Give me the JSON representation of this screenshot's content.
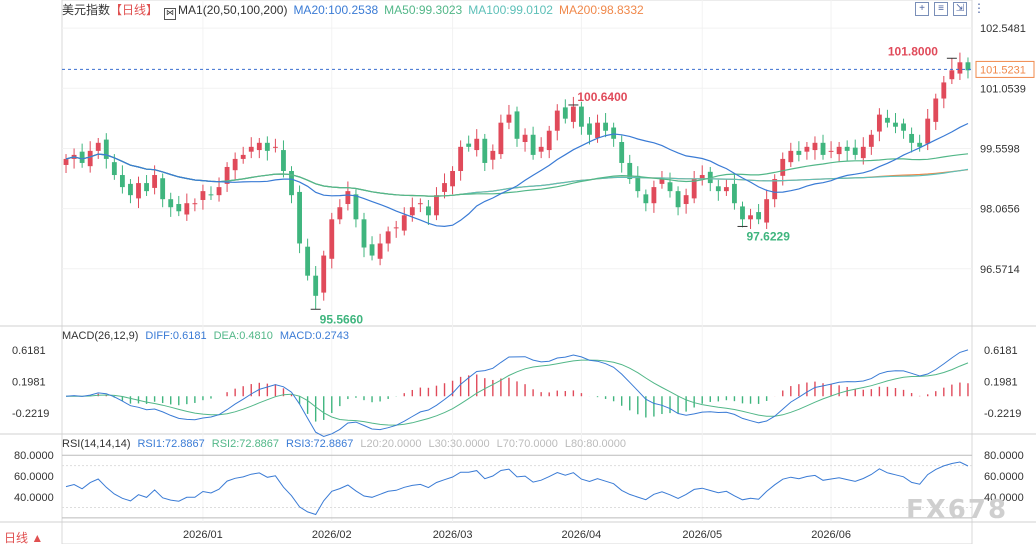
{
  "header": {
    "symbol": "美元指数",
    "period": "【日线】",
    "ma_icon": "indicator-icon",
    "ma_name": "MA1(20,50,100,200)",
    "ma20": "MA20:100.2538",
    "ma50": "MA50:99.3023",
    "ma100": "MA100:99.0102",
    "ma200": "MA200:98.8332"
  },
  "toolbar": [
    "zoom-in-icon",
    "settings-icon",
    "export-icon"
  ],
  "colors": {
    "up": "#e04a5a",
    "down": "#3fb57e",
    "ma20": "#3a7bd5",
    "ma50": "#52b788",
    "ma100": "#5dc0b8",
    "ma200": "#f0884a",
    "diff": "#3a7bd5",
    "dea": "#52b788",
    "rsi1": "#3a7bd5",
    "rsi2": "#52b788",
    "rsi3": "#c67bd5",
    "current_line": "#3a6fd0"
  },
  "price_axis": [
    "102.5481",
    "101.0539",
    "99.5598",
    "98.0656",
    "96.5714"
  ],
  "current_price": "101.5231",
  "annotations": {
    "high": "101.8000",
    "mid_high": "100.6400",
    "low": "95.5660",
    "mid_low": "97.6229"
  },
  "macd": {
    "title": "MACD(26,12,9)",
    "diff": "DIFF:0.6181",
    "dea": "DEA:0.4810",
    "macd": "MACD:0.2743",
    "axis": [
      "0.6181",
      "0.1981",
      "-0.2219"
    ]
  },
  "rsi": {
    "title": "RSI(14,14,14)",
    "rsi1": "RSI1:72.8867",
    "rsi2": "RSI2:72.8867",
    "rsi3": "RSI3:72.8867",
    "l20": "L20:20.0000",
    "l30": "L30:30.0000",
    "l70": "L70:70.0000",
    "l80": "L80:80.0000",
    "axis": [
      "80.0000",
      "60.0000",
      "40.0000"
    ]
  },
  "x_labels": [
    "2026/01",
    "2026/02",
    "2026/03",
    "2026/04",
    "2026/05",
    "2026/06"
  ],
  "mode_label": "日线 ▲",
  "watermark": "FX678",
  "chart_data": {
    "type": "candlestick",
    "title": "美元指数 【日线】",
    "ylim": [
      95.2,
      102.8
    ],
    "x_ticks": [
      "2026/01",
      "2026/02",
      "2026/03",
      "2026/04",
      "2026/05",
      "2026/06"
    ],
    "tick_indices": [
      17,
      33,
      48,
      64,
      79,
      95
    ],
    "closes": [
      99.3,
      99.4,
      99.2,
      99.5,
      99.7,
      99.3,
      98.9,
      98.6,
      98.4,
      98.7,
      98.5,
      98.9,
      98.3,
      98.1,
      98.0,
      98.2,
      98.2,
      98.5,
      98.4,
      98.6,
      99.1,
      99.3,
      99.4,
      99.6,
      99.7,
      99.5,
      99.6,
      99.0,
      98.4,
      97.2,
      96.4,
      95.9,
      96.9,
      97.8,
      98.1,
      98.5,
      97.8,
      97.1,
      96.9,
      97.2,
      97.5,
      97.6,
      97.9,
      98.1,
      98.2,
      97.9,
      98.4,
      98.7,
      99.0,
      99.6,
      99.6,
      99.8,
      99.2,
      99.5,
      100.2,
      100.4,
      99.8,
      99.9,
      99.4,
      99.6,
      100.0,
      100.5,
      100.3,
      100.6,
      100.1,
      99.9,
      100.2,
      100.0,
      99.8,
      99.2,
      98.8,
      98.5,
      98.2,
      98.6,
      98.8,
      98.5,
      98.1,
      98.4,
      98.8,
      98.9,
      98.7,
      98.5,
      98.6,
      98.2,
      97.8,
      97.9,
      97.8,
      98.3,
      98.8,
      99.3,
      99.5,
      99.4,
      99.6,
      99.7,
      99.4,
      99.5,
      99.6,
      99.5,
      99.4,
      99.6,
      99.9,
      100.4,
      100.2,
      100.1,
      100.0,
      99.7,
      99.6,
      100.3,
      100.8,
      101.2,
      101.5,
      101.7,
      101.5
    ],
    "highlights": {
      "max": 101.8,
      "min": 95.566,
      "mid_high": 100.64,
      "mid_low": 97.6229,
      "last": 101.5231
    },
    "ma_values": {
      "ma20": 100.2538,
      "ma50": 99.3023,
      "ma100": 99.0102,
      "ma200": 98.8332
    },
    "macd_values": {
      "diff": 0.6181,
      "dea": 0.481,
      "macd": 0.2743,
      "ylim": [
        -0.45,
        0.75
      ]
    },
    "rsi_values": {
      "rsi1": 72.8867,
      "rsi2": 72.8867,
      "rsi3": 72.8867,
      "ylim": [
        18,
        85
      ]
    }
  }
}
